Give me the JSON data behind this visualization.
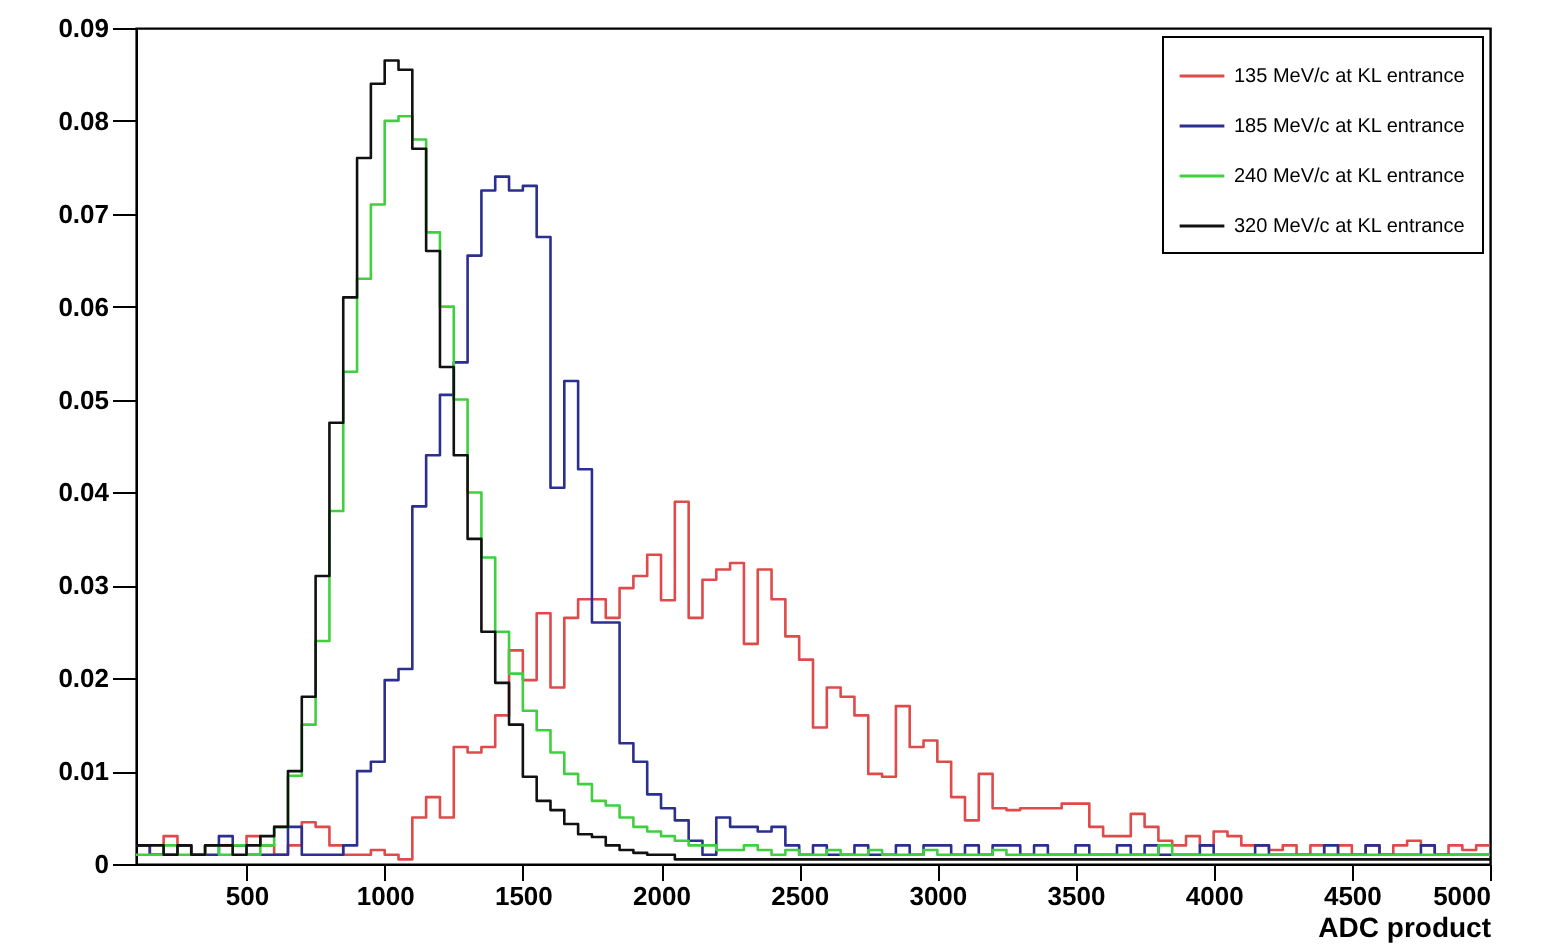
{
  "chart_data": {
    "type": "histogram",
    "xlabel": "ADC product",
    "bins": [
      100,
      150,
      200,
      250,
      300,
      350,
      400,
      450,
      500,
      550,
      600,
      650,
      700,
      750,
      800,
      850,
      900,
      950,
      1000,
      1050,
      1100,
      1150,
      1200,
      1250,
      1300,
      1350,
      1400,
      1450,
      1500,
      1550,
      1600,
      1650,
      1700,
      1750,
      1800,
      1850,
      1900,
      1950,
      2000,
      2050,
      2100,
      2150,
      2200,
      2250,
      2300,
      2350,
      2400,
      2450,
      2500,
      2550,
      2600,
      2650,
      2700,
      2750,
      2800,
      2850,
      2900,
      2950,
      3000,
      3050,
      3100,
      3150,
      3200,
      3250,
      3300,
      3350,
      3400,
      3450,
      3500,
      3550,
      3600,
      3650,
      3700,
      3750,
      3800,
      3850,
      3900,
      3950,
      4000,
      4050,
      4100,
      4150,
      4200,
      4250,
      4300,
      4350,
      4400,
      4450,
      4500,
      4550,
      4600,
      4650,
      4700,
      4750,
      4800,
      4850,
      4900,
      4950,
      5000
    ],
    "series": [
      {
        "name": "135 MeV/c at KL entrance",
        "color": "#e04a4a",
        "values": [
          0.002,
          0.001,
          0.003,
          0.002,
          0.001,
          0.002,
          0.002,
          0.002,
          0.003,
          0.002,
          0.001,
          0.002,
          0.0045,
          0.004,
          0.002,
          0.001,
          0.001,
          0.0015,
          0.001,
          0.0005,
          0.005,
          0.0072,
          0.005,
          0.0126,
          0.012,
          0.0126,
          0.016,
          0.023,
          0.0198,
          0.027,
          0.019,
          0.0265,
          0.0285,
          0.0285,
          0.0265,
          0.0297,
          0.031,
          0.0333,
          0.0284,
          0.039,
          0.0265,
          0.0306,
          0.0317,
          0.0324,
          0.0237,
          0.0317,
          0.0285,
          0.0245,
          0.022,
          0.0147,
          0.019,
          0.018,
          0.016,
          0.0097,
          0.0094,
          0.017,
          0.0126,
          0.0133,
          0.011,
          0.0072,
          0.0047,
          0.0097,
          0.006,
          0.0058,
          0.006,
          0.006,
          0.006,
          0.0065,
          0.0065,
          0.004,
          0.003,
          0.003,
          0.0054,
          0.004,
          0.0025,
          0.002,
          0.003,
          0.002,
          0.0035,
          0.003,
          0.002,
          0.002,
          0.0015,
          0.002,
          0.001,
          0.002,
          0.001,
          0.002,
          0.001,
          0.002,
          0.001,
          0.002,
          0.0025,
          0.002,
          0.001,
          0.002,
          0.0015,
          0.002
        ]
      },
      {
        "name": "185 MeV/c at KL entrance",
        "color": "#2b2f8f",
        "values": [
          0.002,
          0.001,
          0.001,
          0.002,
          0.001,
          0.001,
          0.003,
          0.002,
          0.001,
          0.001,
          0.001,
          0.004,
          0.001,
          0.001,
          0.001,
          0.002,
          0.01,
          0.011,
          0.0198,
          0.021,
          0.0385,
          0.044,
          0.0505,
          0.054,
          0.0655,
          0.0725,
          0.074,
          0.0725,
          0.073,
          0.0675,
          0.0405,
          0.052,
          0.0425,
          0.026,
          0.026,
          0.013,
          0.011,
          0.0075,
          0.006,
          0.0047,
          0.0025,
          0.001,
          0.005,
          0.004,
          0.004,
          0.0035,
          0.004,
          0.002,
          0.001,
          0.002,
          0.001,
          0.001,
          0.002,
          0.001,
          0.001,
          0.002,
          0.001,
          0.002,
          0.002,
          0.001,
          0.002,
          0.001,
          0.002,
          0.002,
          0.001,
          0.002,
          0.001,
          0.001,
          0.002,
          0.001,
          0.001,
          0.002,
          0.001,
          0.002,
          0.001,
          0.001,
          0.001,
          0.002,
          0.001,
          0.001,
          0.001,
          0.002,
          0.001,
          0.001,
          0.001,
          0.001,
          0.002,
          0.001,
          0.001,
          0.002,
          0.001,
          0.001,
          0.001,
          0.002,
          0.001,
          0.001,
          0.001,
          0.001
        ]
      },
      {
        "name": "240 MeV/c at KL entrance",
        "color": "#3fd040",
        "values": [
          0.001,
          0.001,
          0.002,
          0.001,
          0.001,
          0.002,
          0.001,
          0.002,
          0.001,
          0.002,
          0.004,
          0.0095,
          0.015,
          0.024,
          0.038,
          0.053,
          0.063,
          0.071,
          0.08,
          0.0805,
          0.078,
          0.068,
          0.06,
          0.05,
          0.04,
          0.033,
          0.025,
          0.0205,
          0.0165,
          0.0144,
          0.012,
          0.0097,
          0.0086,
          0.0068,
          0.0063,
          0.005,
          0.004,
          0.0035,
          0.003,
          0.0025,
          0.002,
          0.002,
          0.0015,
          0.0015,
          0.002,
          0.0015,
          0.001,
          0.0015,
          0.001,
          0.001,
          0.0015,
          0.001,
          0.001,
          0.0015,
          0.001,
          0.001,
          0.001,
          0.0015,
          0.001,
          0.001,
          0.001,
          0.001,
          0.0015,
          0.001,
          0.001,
          0.001,
          0.001,
          0.001,
          0.001,
          0.001,
          0.001,
          0.001,
          0.001,
          0.001,
          0.002,
          0.001,
          0.001,
          0.001,
          0.001,
          0.001,
          0.001,
          0.001,
          0.001,
          0.001,
          0.001,
          0.001,
          0.001,
          0.001,
          0.001,
          0.001,
          0.001,
          0.001,
          0.001,
          0.001,
          0.001,
          0.001,
          0.001,
          0.001
        ]
      },
      {
        "name": "320 MeV/c at KL entrance",
        "color": "#111111",
        "values": [
          0.002,
          0.002,
          0.001,
          0.002,
          0.001,
          0.002,
          0.002,
          0.001,
          0.002,
          0.003,
          0.004,
          0.01,
          0.018,
          0.031,
          0.0475,
          0.061,
          0.076,
          0.084,
          0.0865,
          0.0855,
          0.077,
          0.066,
          0.0535,
          0.044,
          0.035,
          0.025,
          0.0195,
          0.015,
          0.0094,
          0.0068,
          0.0058,
          0.0043,
          0.0032,
          0.0029,
          0.002,
          0.0015,
          0.0012,
          0.001,
          0.001,
          0.0005,
          0.0005,
          0.0005,
          0.0005,
          0.0005,
          0.0005,
          0.0005,
          0.0005,
          0.0005,
          0.0005,
          0.0005,
          0.0005,
          0.0005,
          0.0005,
          0.0005,
          0.0005,
          0.0005,
          0.0005,
          0.0005,
          0.0005,
          0.0005,
          0.0005,
          0.0005,
          0.0005,
          0.0005,
          0.0005,
          0.0005,
          0.0005,
          0.0005,
          0.0005,
          0.0005,
          0.0005,
          0.0005,
          0.0005,
          0.0005,
          0.0005,
          0.0005,
          0.0005,
          0.0005,
          0.0005,
          0.0005,
          0.0005,
          0.0005,
          0.0005,
          0.0005,
          0.0005,
          0.0005,
          0.0005,
          0.0005,
          0.0005,
          0.0005,
          0.0005,
          0.0005,
          0.0005,
          0.0005,
          0.0005,
          0.0005,
          0.0005,
          0.0005
        ]
      }
    ],
    "xlim": [
      100,
      5000
    ],
    "xticks": [
      500,
      1000,
      1500,
      2000,
      2500,
      3000,
      3500,
      4000,
      4500,
      5000
    ],
    "ylim": [
      0,
      0.09
    ],
    "yticks": [
      0,
      0.01,
      0.02,
      0.03,
      0.04,
      0.05,
      0.06,
      0.07,
      0.08,
      0.09
    ],
    "grid": false,
    "legend": "top right"
  }
}
